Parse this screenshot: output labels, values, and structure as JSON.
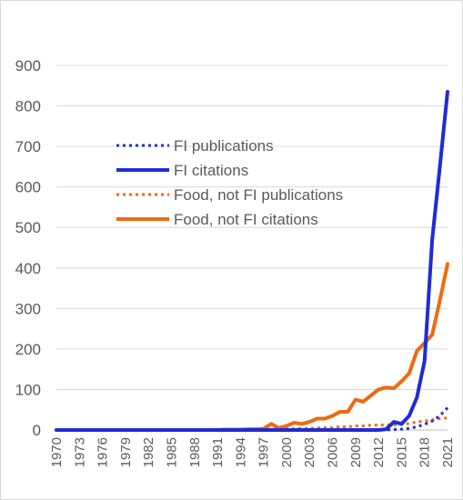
{
  "chart_data": {
    "type": "line",
    "title": "",
    "xlabel": "",
    "ylabel": "",
    "ylim": [
      0,
      900
    ],
    "y_ticks": [
      0,
      100,
      200,
      300,
      400,
      500,
      600,
      700,
      800,
      900
    ],
    "grid": "horizontal",
    "legend_position": "center-left",
    "x": [
      1970,
      1971,
      1972,
      1973,
      1974,
      1975,
      1976,
      1977,
      1978,
      1979,
      1980,
      1981,
      1982,
      1983,
      1984,
      1985,
      1986,
      1987,
      1988,
      1989,
      1990,
      1991,
      1992,
      1993,
      1994,
      1995,
      1996,
      1997,
      1998,
      1999,
      2000,
      2001,
      2002,
      2003,
      2004,
      2005,
      2006,
      2007,
      2008,
      2009,
      2010,
      2011,
      2012,
      2013,
      2014,
      2015,
      2016,
      2017,
      2018,
      2019,
      2020,
      2021
    ],
    "x_tick_labels": [
      "1970",
      "1973",
      "1976",
      "1979",
      "1982",
      "1985",
      "1988",
      "1991",
      "1994",
      "1997",
      "2000",
      "2003",
      "2006",
      "2009",
      "2012",
      "2015",
      "2018",
      "2021"
    ],
    "series": [
      {
        "name": "FI publications",
        "color": "#1f2bd6",
        "style": "dotted",
        "values": [
          0,
          0,
          0,
          0,
          0,
          0,
          0,
          0,
          0,
          0,
          0,
          0,
          0,
          0,
          0,
          0,
          0,
          0,
          0,
          0,
          0,
          0,
          0,
          0,
          0,
          0,
          0,
          0,
          0,
          0,
          0,
          0,
          0,
          0,
          0,
          0,
          0,
          0,
          0,
          0,
          0,
          0,
          0,
          0,
          1,
          2,
          4,
          8,
          14,
          22,
          35,
          55
        ]
      },
      {
        "name": "FI citations",
        "color": "#1f2bd6",
        "style": "solid",
        "values": [
          0,
          0,
          0,
          0,
          0,
          0,
          0,
          0,
          0,
          0,
          0,
          0,
          0,
          0,
          0,
          0,
          0,
          0,
          0,
          0,
          0,
          0,
          0,
          0,
          0,
          0,
          0,
          0,
          0,
          0,
          0,
          0,
          0,
          0,
          0,
          0,
          0,
          0,
          0,
          0,
          0,
          0,
          0,
          2,
          20,
          15,
          35,
          80,
          170,
          470,
          650,
          835
        ]
      },
      {
        "name": "Food, not FI publications",
        "color": "#ed6a12",
        "style": "dotted",
        "values": [
          0,
          0,
          0,
          0,
          0,
          0,
          0,
          0,
          0,
          0,
          0,
          0,
          0,
          0,
          0,
          0,
          0,
          0,
          0,
          0,
          0,
          0,
          0,
          0,
          0,
          1,
          1,
          1,
          2,
          2,
          3,
          3,
          4,
          4,
          5,
          6,
          6,
          8,
          8,
          10,
          10,
          12,
          12,
          13,
          12,
          14,
          16,
          20,
          22,
          25,
          28,
          30
        ]
      },
      {
        "name": "Food, not FI citations",
        "color": "#ed6a12",
        "style": "solid",
        "values": [
          0,
          0,
          0,
          0,
          0,
          0,
          0,
          0,
          0,
          0,
          0,
          0,
          0,
          0,
          0,
          0,
          0,
          0,
          0,
          0,
          0,
          0,
          1,
          1,
          1,
          2,
          2,
          3,
          15,
          5,
          10,
          18,
          15,
          20,
          28,
          28,
          35,
          45,
          45,
          75,
          70,
          85,
          100,
          105,
          103,
          120,
          140,
          195,
          215,
          235,
          320,
          410
        ]
      }
    ]
  }
}
